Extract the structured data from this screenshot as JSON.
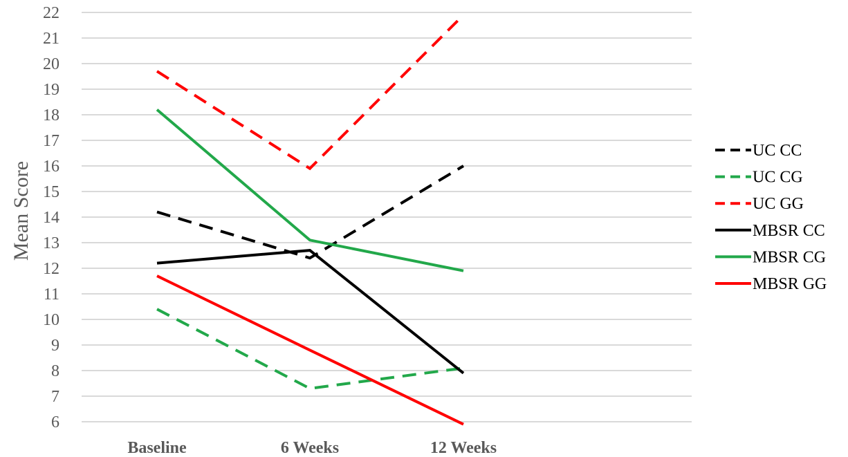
{
  "chart_data": {
    "type": "line",
    "categories": [
      "Baseline",
      "6 Weeks",
      "12 Weeks"
    ],
    "ylabel": "Mean Score",
    "ylim": [
      6,
      22
    ],
    "yticks": [
      6,
      7,
      8,
      9,
      10,
      11,
      12,
      13,
      14,
      15,
      16,
      17,
      18,
      19,
      20,
      21,
      22
    ],
    "grid": true,
    "legend": "right",
    "series": [
      {
        "name": "UC CC",
        "values": [
          14.2,
          12.4,
          16.0
        ],
        "color": "#000000",
        "dashed": true
      },
      {
        "name": "UC CG",
        "values": [
          10.4,
          7.3,
          8.1
        ],
        "color": "#22A84A",
        "dashed": true
      },
      {
        "name": "UC GG",
        "values": [
          19.7,
          15.9,
          21.9
        ],
        "color": "#FF0000",
        "dashed": true
      },
      {
        "name": "MBSR CC",
        "values": [
          12.2,
          12.7,
          7.9
        ],
        "color": "#000000",
        "dashed": false
      },
      {
        "name": "MBSR CG",
        "values": [
          18.2,
          13.1,
          11.9
        ],
        "color": "#22A84A",
        "dashed": false
      },
      {
        "name": "MBSR GG",
        "values": [
          11.7,
          8.8,
          5.9
        ],
        "color": "#FF0000",
        "dashed": false
      }
    ]
  }
}
